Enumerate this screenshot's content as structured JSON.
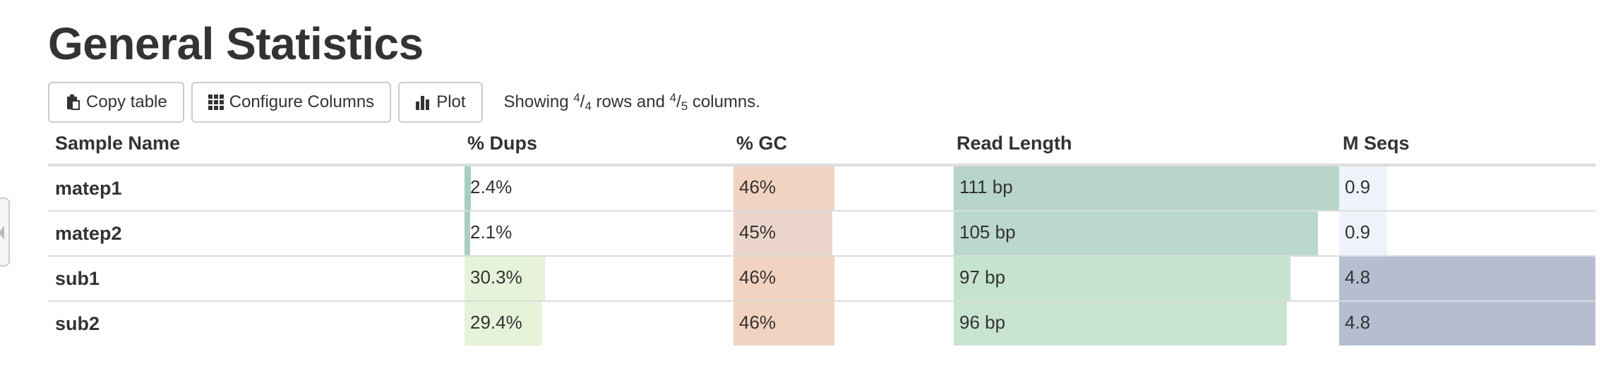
{
  "title": "General Statistics",
  "toolbar": {
    "copy_label": "Copy table",
    "configure_label": "Configure Columns",
    "plot_label": "Plot",
    "status_prefix": "Showing ",
    "rows_num": "4",
    "rows_den": "4",
    "status_middle": " rows and ",
    "cols_num": "4",
    "cols_den": "5",
    "status_suffix": " columns."
  },
  "columns": [
    "Sample Name",
    "% Dups",
    "% GC",
    "Read Length",
    "M Seqs"
  ],
  "rows": [
    {
      "name": "matep1",
      "dups": {
        "text": "2.4%",
        "value": 2.4,
        "color": "#a7cfc0"
      },
      "gc": {
        "text": "46%",
        "value": 46,
        "color": "#f2d2c0"
      },
      "readlen": {
        "text": "111 bp",
        "value": 111,
        "color": "#b8d5c9"
      },
      "mseqs": {
        "text": "0.9",
        "value": 0.9,
        "color": "#eef3fb"
      }
    },
    {
      "name": "matep2",
      "dups": {
        "text": "2.1%",
        "value": 2.1,
        "color": "#a7cfc0"
      },
      "gc": {
        "text": "45%",
        "value": 45,
        "color": "#ecd6cc"
      },
      "readlen": {
        "text": "105 bp",
        "value": 105,
        "color": "#bad8cb"
      },
      "mseqs": {
        "text": "0.9",
        "value": 0.9,
        "color": "#eef3fb"
      }
    },
    {
      "name": "sub1",
      "dups": {
        "text": "30.3%",
        "value": 30.3,
        "color": "#e6f3d9"
      },
      "gc": {
        "text": "46%",
        "value": 46,
        "color": "#f2d2c0"
      },
      "readlen": {
        "text": "97 bp",
        "value": 97,
        "color": "#c5e3cf"
      },
      "mseqs": {
        "text": "4.8",
        "value": 4.8,
        "color": "#b4bed0"
      }
    },
    {
      "name": "sub2",
      "dups": {
        "text": "29.4%",
        "value": 29.4,
        "color": "#e6f3d9"
      },
      "gc": {
        "text": "46%",
        "value": 46,
        "color": "#f2d2c0"
      },
      "readlen": {
        "text": "96 bp",
        "value": 96,
        "color": "#c8e3d1"
      },
      "mseqs": {
        "text": "4.8",
        "value": 4.8,
        "color": "#b4bed0"
      }
    }
  ],
  "scales": {
    "dups": [
      0,
      100
    ],
    "gc": [
      0,
      100
    ],
    "readlen": [
      0,
      111
    ],
    "mseqs": [
      0,
      4.8
    ]
  }
}
